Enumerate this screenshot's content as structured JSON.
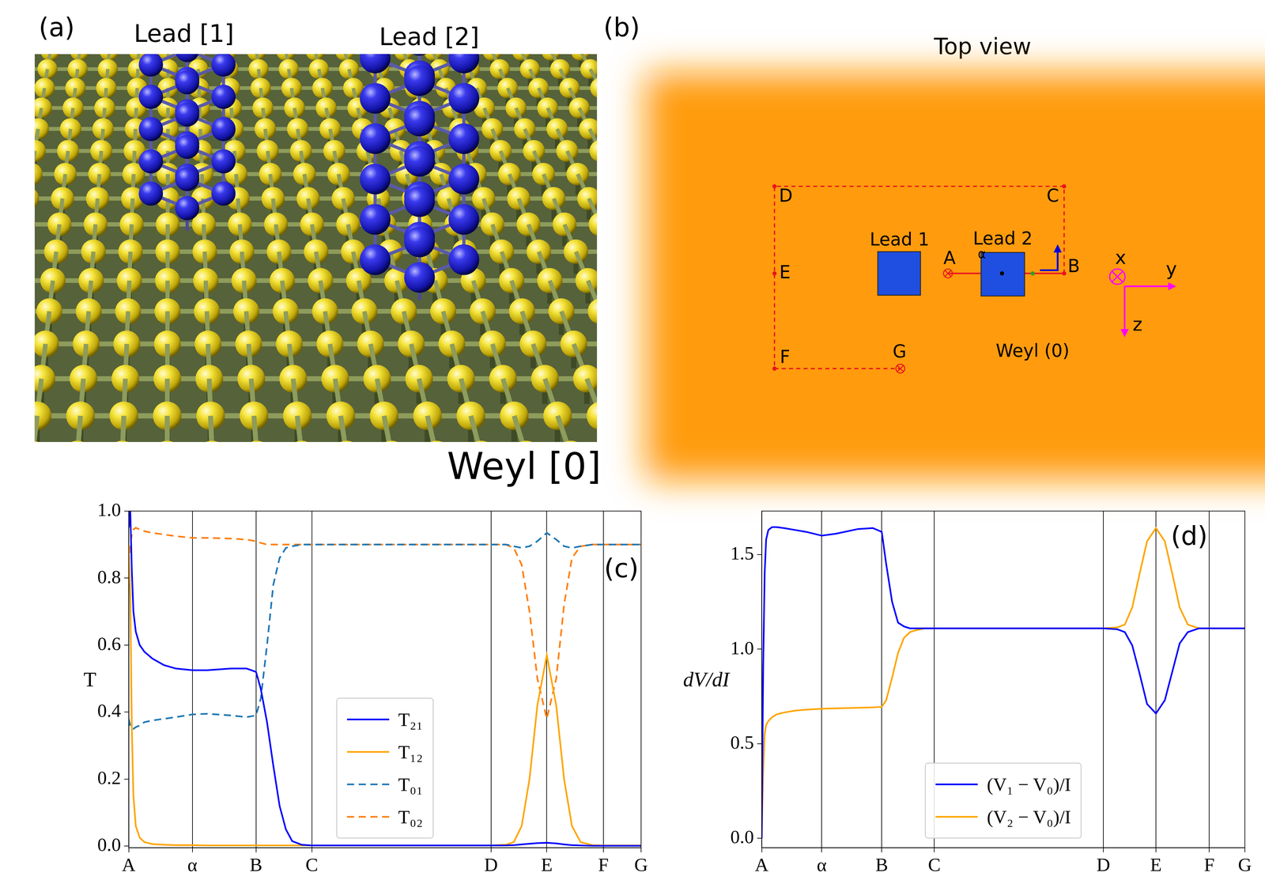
{
  "panel_a": {
    "label": "(a)",
    "leads": [
      "Lead [1]",
      "Lead [2]"
    ],
    "substrate": "Weyl [0]"
  },
  "panel_b": {
    "label": "(b)",
    "title": "Top view",
    "leads": [
      "Lead 1",
      "Lead 2"
    ],
    "substrate": "Weyl (0)",
    "path_points": [
      "A",
      "α",
      "B",
      "C",
      "D",
      "E",
      "F",
      "G"
    ],
    "axes": [
      "x",
      "y",
      "z"
    ]
  },
  "chart_data": [
    {
      "type": "line",
      "title": "(c)",
      "ylabel": "T",
      "x": [
        0,
        2,
        4,
        6,
        9,
        14,
        20,
        30,
        45,
        60,
        81,
        100,
        130,
        150,
        162,
        168,
        176,
        184,
        192,
        200,
        208,
        220,
        233,
        300,
        400,
        461,
        480,
        490,
        500,
        510,
        520,
        532,
        544,
        554,
        564,
        575,
        590,
        604,
        652
      ],
      "xlim": [
        0,
        652
      ],
      "xticks": [
        {
          "value": 0,
          "label": "A"
        },
        {
          "value": 81,
          "label": "α"
        },
        {
          "value": 162,
          "label": "B"
        },
        {
          "value": 233,
          "label": "C"
        },
        {
          "value": 461,
          "label": "D"
        },
        {
          "value": 532,
          "label": "E"
        },
        {
          "value": 604,
          "label": "F"
        },
        {
          "value": 652,
          "label": "G"
        }
      ],
      "ylim": [
        -0.005,
        1.0
      ],
      "yticks": [
        {
          "value": 0,
          "label": "0.0"
        },
        {
          "value": 0.2,
          "label": "0.2"
        },
        {
          "value": 0.4,
          "label": "0.4"
        },
        {
          "value": 0.6,
          "label": "0.6"
        },
        {
          "value": 0.8,
          "label": "0.8"
        },
        {
          "value": 1.0,
          "label": "1.0"
        }
      ],
      "grid": "x",
      "legend": "lower center",
      "series": [
        {
          "name": "T₂₁",
          "color": "#0000ff",
          "line_style": "solid",
          "values": [
            0.95,
            1.0,
            0.82,
            0.7,
            0.64,
            0.6,
            0.58,
            0.56,
            0.54,
            0.53,
            0.525,
            0.525,
            0.53,
            0.53,
            0.52,
            0.47,
            0.37,
            0.24,
            0.12,
            0.05,
            0.015,
            0.004,
            0.002,
            0.002,
            0.002,
            0.002,
            0.002,
            0.003,
            0.005,
            0.007,
            0.009,
            0.01,
            0.008,
            0.005,
            0.003,
            0.002,
            0.001,
            0.001,
            0.001
          ]
        },
        {
          "name": "T₁₂",
          "color": "#ffa500",
          "line_style": "solid",
          "values": [
            0.9,
            0.75,
            0.35,
            0.15,
            0.06,
            0.025,
            0.012,
            0.006,
            0.004,
            0.003,
            0.003,
            0.002,
            0.002,
            0.002,
            0.002,
            0.002,
            0.002,
            0.002,
            0.002,
            0.002,
            0.002,
            0.002,
            0.002,
            0.002,
            0.002,
            0.002,
            0.004,
            0.012,
            0.06,
            0.2,
            0.42,
            0.57,
            0.42,
            0.2,
            0.06,
            0.012,
            0.003,
            0.002,
            0.002
          ]
        },
        {
          "name": "T₀₁",
          "color": "#1f77b4",
          "line_style": "dashed",
          "values": [
            0.38,
            0.36,
            0.35,
            0.35,
            0.355,
            0.36,
            0.37,
            0.375,
            0.38,
            0.385,
            0.393,
            0.395,
            0.39,
            0.385,
            0.39,
            0.44,
            0.6,
            0.78,
            0.86,
            0.89,
            0.895,
            0.9,
            0.9,
            0.9,
            0.9,
            0.9,
            0.9,
            0.895,
            0.89,
            0.895,
            0.91,
            0.935,
            0.915,
            0.895,
            0.89,
            0.895,
            0.9,
            0.9,
            0.9
          ]
        },
        {
          "name": "T₀₂",
          "color": "#ff7f0e",
          "line_style": "dashed",
          "values": [
            0.84,
            0.9,
            0.93,
            0.945,
            0.95,
            0.945,
            0.94,
            0.935,
            0.93,
            0.925,
            0.92,
            0.92,
            0.918,
            0.915,
            0.91,
            0.905,
            0.9,
            0.9,
            0.9,
            0.9,
            0.9,
            0.9,
            0.9,
            0.9,
            0.9,
            0.9,
            0.9,
            0.89,
            0.84,
            0.7,
            0.5,
            0.38,
            0.5,
            0.72,
            0.86,
            0.895,
            0.9,
            0.9,
            0.9
          ]
        }
      ]
    },
    {
      "type": "line",
      "title": "(d)",
      "ylabel": "dV/dI",
      "x": [
        0,
        2,
        4,
        6,
        9,
        14,
        20,
        30,
        45,
        60,
        81,
        100,
        130,
        150,
        162,
        168,
        176,
        184,
        192,
        200,
        208,
        220,
        233,
        300,
        400,
        461,
        480,
        490,
        500,
        510,
        520,
        532,
        544,
        554,
        564,
        575,
        590,
        604,
        652
      ],
      "xlim": [
        0,
        652
      ],
      "xticks": [
        {
          "value": 0,
          "label": "A"
        },
        {
          "value": 81,
          "label": "α"
        },
        {
          "value": 162,
          "label": "B"
        },
        {
          "value": 233,
          "label": "C"
        },
        {
          "value": 461,
          "label": "D"
        },
        {
          "value": 532,
          "label": "E"
        },
        {
          "value": 604,
          "label": "F"
        },
        {
          "value": 652,
          "label": "G"
        }
      ],
      "ylim": [
        -0.05,
        1.73
      ],
      "yticks": [
        {
          "value": 0,
          "label": "0.0"
        },
        {
          "value": 0.5,
          "label": "0.5"
        },
        {
          "value": 1.0,
          "label": "1.0"
        },
        {
          "value": 1.5,
          "label": "1.5"
        }
      ],
      "grid": "x",
      "legend": "lower center",
      "series": [
        {
          "name": "(V₁ − V₀)/I",
          "color": "#0000ff",
          "line_style": "solid",
          "values": [
            0.0,
            0.9,
            1.4,
            1.58,
            1.63,
            1.645,
            1.645,
            1.64,
            1.63,
            1.62,
            1.6,
            1.61,
            1.635,
            1.64,
            1.62,
            1.45,
            1.25,
            1.14,
            1.12,
            1.11,
            1.11,
            1.11,
            1.11,
            1.11,
            1.11,
            1.11,
            1.105,
            1.09,
            1.02,
            0.87,
            0.71,
            0.66,
            0.73,
            0.88,
            1.03,
            1.09,
            1.11,
            1.11,
            1.11
          ]
        },
        {
          "name": "(V₂ − V₀)/I",
          "color": "#ffa500",
          "line_style": "solid",
          "values": [
            0.0,
            0.35,
            0.55,
            0.6,
            0.62,
            0.64,
            0.655,
            0.665,
            0.675,
            0.68,
            0.685,
            0.687,
            0.69,
            0.692,
            0.695,
            0.73,
            0.85,
            0.98,
            1.06,
            1.09,
            1.1,
            1.11,
            1.11,
            1.11,
            1.11,
            1.11,
            1.115,
            1.13,
            1.22,
            1.4,
            1.57,
            1.64,
            1.57,
            1.4,
            1.22,
            1.13,
            1.11,
            1.11,
            1.11
          ]
        }
      ]
    }
  ]
}
